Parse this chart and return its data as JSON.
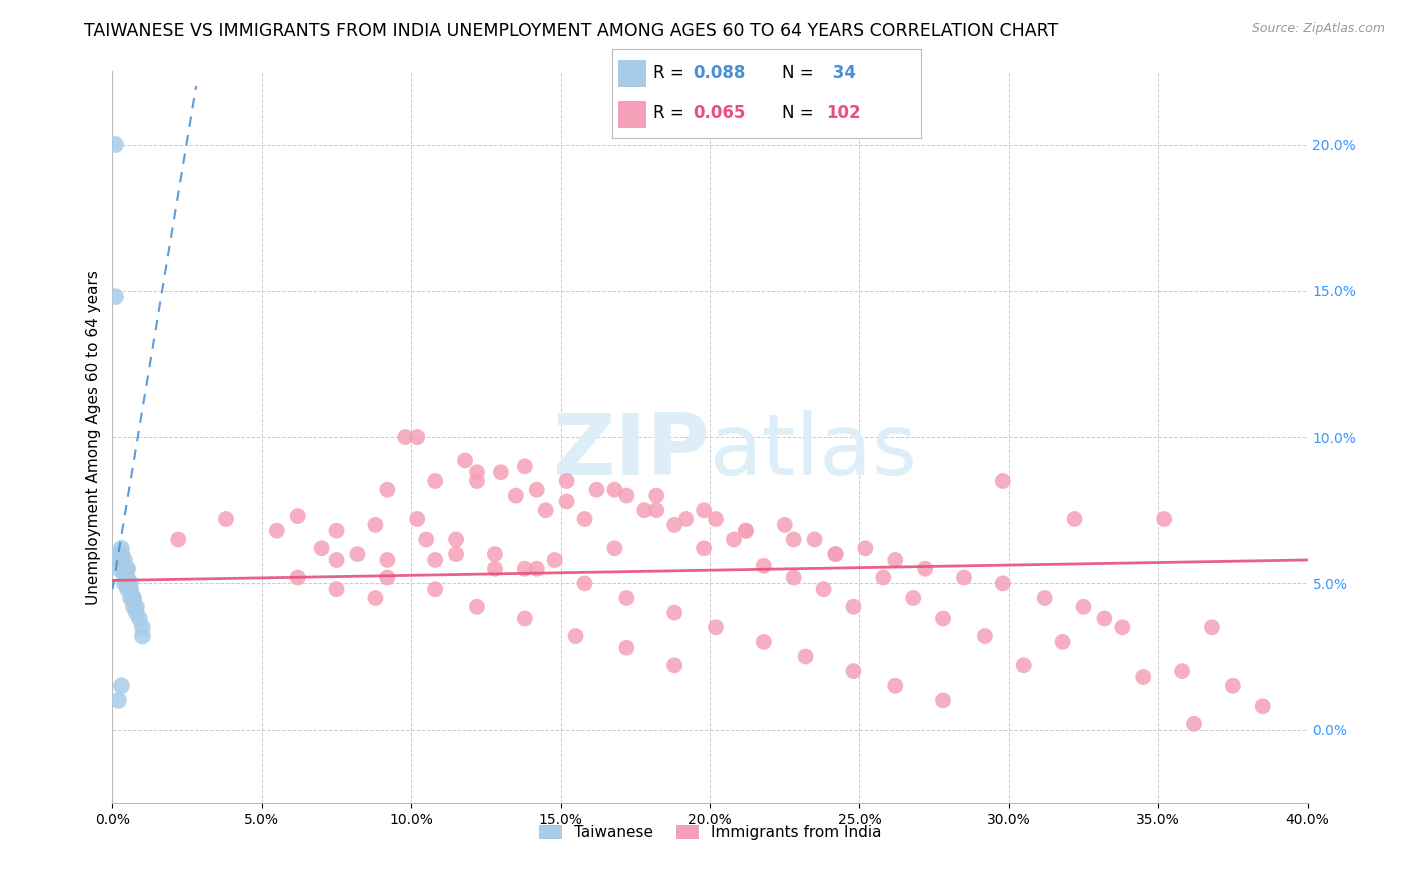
{
  "title": "TAIWANESE VS IMMIGRANTS FROM INDIA UNEMPLOYMENT AMONG AGES 60 TO 64 YEARS CORRELATION CHART",
  "source": "Source: ZipAtlas.com",
  "ylabel": "Unemployment Among Ages 60 to 64 years",
  "xlim": [
    0.0,
    0.4
  ],
  "ylim": [
    -0.025,
    0.225
  ],
  "xticks": [
    0.0,
    0.05,
    0.1,
    0.15,
    0.2,
    0.25,
    0.3,
    0.35,
    0.4
  ],
  "yticks_right": [
    0.0,
    0.05,
    0.1,
    0.15,
    0.2
  ],
  "taiwanese_R": 0.088,
  "taiwanese_N": 34,
  "india_R": 0.065,
  "india_N": 102,
  "taiwanese_color": "#a8cce8",
  "india_color": "#f4a0b8",
  "taiwanese_line_color": "#4a90d9",
  "india_line_color": "#e8507a",
  "background_color": "#ffffff",
  "grid_color": "#cccccc",
  "watermark_color": "#ddeef8",
  "title_fontsize": 12.5,
  "axis_label_fontsize": 11,
  "tick_fontsize": 10,
  "legend_fontsize": 12,
  "taiwanese_x": [
    0.001,
    0.001,
    0.002,
    0.002,
    0.002,
    0.003,
    0.003,
    0.003,
    0.003,
    0.004,
    0.004,
    0.004,
    0.004,
    0.004,
    0.005,
    0.005,
    0.005,
    0.005,
    0.005,
    0.005,
    0.006,
    0.006,
    0.006,
    0.006,
    0.007,
    0.007,
    0.007,
    0.008,
    0.008,
    0.009,
    0.01,
    0.01,
    0.003,
    0.002
  ],
  "taiwanese_y": [
    0.2,
    0.148,
    0.06,
    0.058,
    0.055,
    0.06,
    0.06,
    0.062,
    0.058,
    0.058,
    0.055,
    0.055,
    0.052,
    0.05,
    0.055,
    0.055,
    0.052,
    0.05,
    0.05,
    0.048,
    0.05,
    0.048,
    0.048,
    0.045,
    0.045,
    0.045,
    0.042,
    0.042,
    0.04,
    0.038,
    0.035,
    0.032,
    0.015,
    0.01
  ],
  "india_x": [
    0.022,
    0.038,
    0.055,
    0.062,
    0.07,
    0.075,
    0.082,
    0.088,
    0.092,
    0.098,
    0.102,
    0.105,
    0.108,
    0.115,
    0.118,
    0.122,
    0.128,
    0.13,
    0.135,
    0.138,
    0.142,
    0.145,
    0.148,
    0.152,
    0.158,
    0.162,
    0.168,
    0.172,
    0.178,
    0.182,
    0.188,
    0.192,
    0.198,
    0.202,
    0.208,
    0.212,
    0.218,
    0.225,
    0.228,
    0.235,
    0.238,
    0.242,
    0.248,
    0.252,
    0.258,
    0.262,
    0.268,
    0.272,
    0.278,
    0.285,
    0.292,
    0.298,
    0.305,
    0.312,
    0.318,
    0.325,
    0.332,
    0.338,
    0.345,
    0.352,
    0.358,
    0.368,
    0.375,
    0.385,
    0.062,
    0.075,
    0.088,
    0.102,
    0.115,
    0.128,
    0.142,
    0.158,
    0.172,
    0.188,
    0.202,
    0.218,
    0.232,
    0.248,
    0.262,
    0.278,
    0.092,
    0.108,
    0.122,
    0.138,
    0.152,
    0.168,
    0.182,
    0.198,
    0.212,
    0.228,
    0.242,
    0.075,
    0.092,
    0.108,
    0.122,
    0.138,
    0.155,
    0.172,
    0.188,
    0.298,
    0.322,
    0.362
  ],
  "india_y": [
    0.065,
    0.072,
    0.068,
    0.073,
    0.062,
    0.068,
    0.06,
    0.07,
    0.058,
    0.1,
    0.1,
    0.065,
    0.058,
    0.06,
    0.092,
    0.085,
    0.055,
    0.088,
    0.08,
    0.055,
    0.082,
    0.075,
    0.058,
    0.078,
    0.072,
    0.082,
    0.062,
    0.08,
    0.075,
    0.075,
    0.07,
    0.072,
    0.062,
    0.072,
    0.065,
    0.068,
    0.056,
    0.07,
    0.052,
    0.065,
    0.048,
    0.06,
    0.042,
    0.062,
    0.052,
    0.058,
    0.045,
    0.055,
    0.038,
    0.052,
    0.032,
    0.05,
    0.022,
    0.045,
    0.03,
    0.042,
    0.038,
    0.035,
    0.018,
    0.072,
    0.02,
    0.035,
    0.015,
    0.008,
    0.052,
    0.048,
    0.045,
    0.072,
    0.065,
    0.06,
    0.055,
    0.05,
    0.045,
    0.04,
    0.035,
    0.03,
    0.025,
    0.02,
    0.015,
    0.01,
    0.082,
    0.085,
    0.088,
    0.09,
    0.085,
    0.082,
    0.08,
    0.075,
    0.068,
    0.065,
    0.06,
    0.058,
    0.052,
    0.048,
    0.042,
    0.038,
    0.032,
    0.028,
    0.022,
    0.085,
    0.072,
    0.002
  ],
  "tw_trend_x0": 0.0,
  "tw_trend_x1": 0.028,
  "tw_trend_y0": 0.048,
  "tw_trend_y1": 0.22,
  "ind_trend_x0": 0.0,
  "ind_trend_x1": 0.4,
  "ind_trend_y0": 0.051,
  "ind_trend_y1": 0.058
}
